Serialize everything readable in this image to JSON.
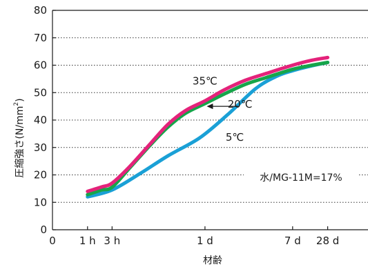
{
  "chart_data": {
    "type": "line",
    "ylabel": "圧縮強さ(N/mm²)",
    "ylabel_main": "圧縮強さ(N/mm",
    "ylabel_sup": "2",
    "ylabel_tail": ")",
    "xlabel": "材齢",
    "ylim": [
      0,
      80
    ],
    "y_ticks": [
      0,
      10,
      20,
      30,
      40,
      50,
      60,
      70,
      80
    ],
    "x_ticks": [
      {
        "label": "0",
        "pos": 0
      },
      {
        "label": "1 h",
        "pos": 1
      },
      {
        "label": "3 h",
        "pos": 1.7
      },
      {
        "label": "1 d",
        "pos": 4.35
      },
      {
        "label": "7 d",
        "pos": 6.85
      },
      {
        "label": "28 d",
        "pos": 7.85
      }
    ],
    "x_max": 9,
    "grid": "horizontal-dotted",
    "series": [
      {
        "name": "5℃",
        "color": "#1aa0d6",
        "points": [
          [
            1,
            12.0
          ],
          [
            1.7,
            14.5
          ],
          [
            2.5,
            20.5
          ],
          [
            3.3,
            27.0
          ],
          [
            4.2,
            33.5
          ],
          [
            5.0,
            42.0
          ],
          [
            5.8,
            51.5
          ],
          [
            6.4,
            56.0
          ],
          [
            6.85,
            58.0
          ],
          [
            7.4,
            59.8
          ],
          [
            7.85,
            61.0
          ]
        ]
      },
      {
        "name": "20℃",
        "color": "#16a54a",
        "points": [
          [
            1,
            12.8
          ],
          [
            1.4,
            14.5
          ],
          [
            1.7,
            15.5
          ],
          [
            2.2,
            22.5
          ],
          [
            2.8,
            31.0
          ],
          [
            3.3,
            37.5
          ],
          [
            3.8,
            42.5
          ],
          [
            4.35,
            46.0
          ],
          [
            4.9,
            49.5
          ],
          [
            5.5,
            53.0
          ],
          [
            6.1,
            55.5
          ],
          [
            6.85,
            58.5
          ],
          [
            7.4,
            60.0
          ],
          [
            7.85,
            61.0
          ]
        ]
      },
      {
        "name": "35℃",
        "color": "#e4227a",
        "points": [
          [
            1,
            14.0
          ],
          [
            1.4,
            15.6
          ],
          [
            1.7,
            17.0
          ],
          [
            2.2,
            23.0
          ],
          [
            2.8,
            31.5
          ],
          [
            3.3,
            38.5
          ],
          [
            3.8,
            43.5
          ],
          [
            4.35,
            47.0
          ],
          [
            4.9,
            51.0
          ],
          [
            5.5,
            54.5
          ],
          [
            6.1,
            57.0
          ],
          [
            6.85,
            60.0
          ],
          [
            7.4,
            61.8
          ],
          [
            7.85,
            62.8
          ]
        ]
      }
    ],
    "annotations": [
      {
        "text": "35℃",
        "x": 4.35,
        "y": 53.0
      },
      {
        "text": "20℃",
        "x": 5.35,
        "y": 44.5
      },
      {
        "text": "5℃",
        "x": 5.2,
        "y": 32.5
      }
    ],
    "arrow": {
      "from": [
        5.3,
        45.0
      ],
      "to": [
        4.4,
        45.0
      ]
    },
    "note": "水/MG-11M=17%"
  }
}
